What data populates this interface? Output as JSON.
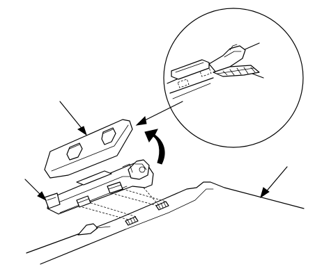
{
  "figure": {
    "background": "#ffffff",
    "line_color": "#000000",
    "callouts": [
      "leader-top-left",
      "leader-left",
      "leader-right",
      "zoom-arrow",
      "curved-removal-arrow"
    ]
  }
}
